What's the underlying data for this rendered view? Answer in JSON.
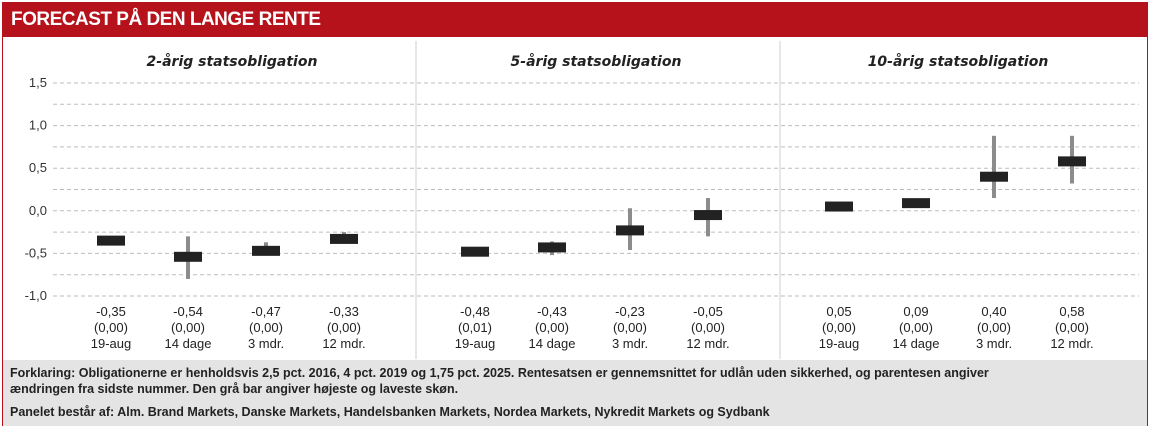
{
  "header": {
    "title": "FORECAST PÅ DEN LANGE RENTE"
  },
  "colors": {
    "header": "#b5121b",
    "bar": "#222222",
    "range": "#8c8c8c",
    "grid": "#bdbdbd"
  },
  "chart_data": [
    {
      "type": "range",
      "title": "2-årig statsobligation",
      "ylim": [
        -1.0,
        1.5
      ],
      "yticks": [
        "1,5",
        "1,0",
        "0,5",
        "0,0",
        "-0,5",
        "-1,0"
      ],
      "grid": true,
      "categories": [
        "19-aug",
        "14 dage",
        "3 mdr.",
        "12 mdr."
      ],
      "values": [
        -0.35,
        -0.54,
        -0.47,
        -0.33
      ],
      "ranges": [
        null,
        [
          -0.8,
          -0.3
        ],
        [
          -0.52,
          -0.37
        ],
        [
          -0.37,
          -0.25
        ]
      ],
      "value_labels": [
        "-0,35",
        "-0,54",
        "-0,47",
        "-0,33"
      ],
      "change_labels": [
        "(0,00)",
        "(0,00)",
        "(0,00)",
        "(0,00)"
      ]
    },
    {
      "type": "range",
      "title": "5-årig statsobligation",
      "ylim": [
        -1.0,
        1.5
      ],
      "categories": [
        "19-aug",
        "14 dage",
        "3 mdr.",
        "12 mdr."
      ],
      "values": [
        -0.48,
        -0.43,
        -0.23,
        -0.05
      ],
      "ranges": [
        null,
        [
          -0.52,
          -0.36
        ],
        [
          -0.46,
          0.03
        ],
        [
          -0.3,
          0.15
        ]
      ],
      "value_labels": [
        "-0,48",
        "-0,43",
        "-0,23",
        "-0,05"
      ],
      "change_labels": [
        "(0,01)",
        "(0,00)",
        "(0,00)",
        "(0,00)"
      ]
    },
    {
      "type": "range",
      "title": "10-årig statsobligation",
      "ylim": [
        -1.0,
        1.5
      ],
      "categories": [
        "19-aug",
        "14 dage",
        "3 mdr.",
        "12 mdr."
      ],
      "values": [
        0.05,
        0.09,
        0.4,
        0.58
      ],
      "ranges": [
        null,
        null,
        [
          0.15,
          0.88
        ],
        [
          0.32,
          0.88
        ]
      ],
      "value_labels": [
        "0,05",
        "0,09",
        "0,40",
        "0,58"
      ],
      "change_labels": [
        "(0,00)",
        "(0,00)",
        "(0,00)",
        "(0,00)"
      ]
    }
  ],
  "footer": {
    "line1": "Forklaring: Obligationerne er henholdsvis 2,5 pct. 2016, 4 pct. 2019 og 1,75 pct. 2025. Rentesatsen er gennemsnittet for udlån uden sikkerhed, og parentesen angiver",
    "line2": "ændringen fra sidste nummer. Den grå bar angiver højeste og laveste skøn.",
    "line3": "Panelet består af: Alm. Brand Markets, Danske Markets, Handelsbanken Markets, Nordea Markets, Nykredit Markets og Sydbank"
  }
}
